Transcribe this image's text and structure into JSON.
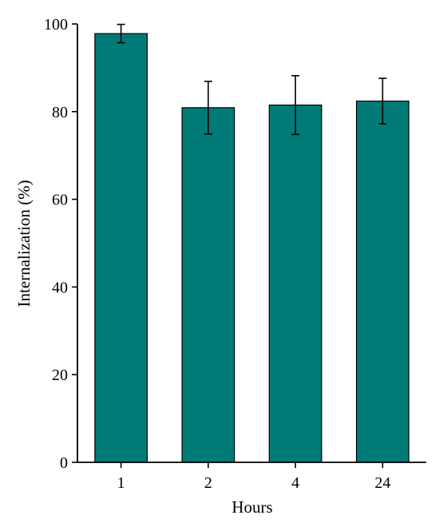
{
  "chart_data": {
    "type": "bar",
    "categories": [
      "1",
      "2",
      "4",
      "24"
    ],
    "values": [
      97.8,
      80.9,
      81.5,
      82.4
    ],
    "errors_upper": [
      99.9,
      86.9,
      88.2,
      87.6
    ],
    "errors_lower": [
      95.7,
      74.9,
      74.8,
      77.2
    ],
    "xlabel": "Hours",
    "ylabel": "Internalization (%)",
    "ylim": [
      0,
      100
    ],
    "yticks": [
      0,
      20,
      40,
      60,
      80,
      100
    ],
    "grid": false,
    "legend": "none",
    "colors": {
      "bar_fill": "#007b78",
      "bar_stroke": "#000000",
      "axis": "#000000",
      "error_bar": "#000000"
    }
  }
}
